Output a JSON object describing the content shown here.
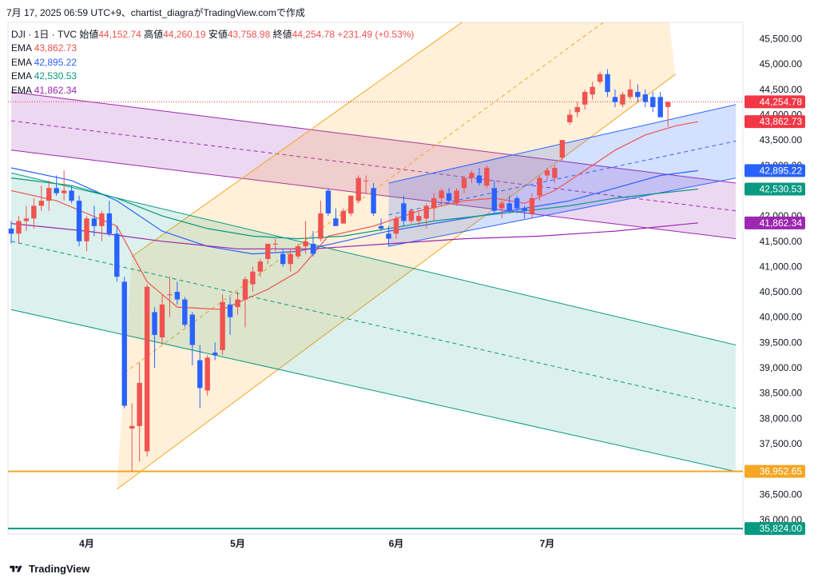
{
  "header": {
    "title": "7月 17, 2025 06:59 UTC+9、chartist_diagraがTradingView.comで作成"
  },
  "legend": {
    "symbol": "DJI · 1日 · TVC",
    "o_label": "始値",
    "o": "44,152.74",
    "h_label": "高値",
    "h": "44,260.19",
    "l_label": "安値",
    "l": "43,758.98",
    "c_label": "終値",
    "c": "44,254.78",
    "chg": "+231.49 (+0.53%)",
    "emas": [
      {
        "label": "EMA",
        "value": "43,862.73",
        "color": "#ef5350"
      },
      {
        "label": "EMA",
        "value": "42,895.22",
        "color": "#2962ff"
      },
      {
        "label": "EMA",
        "value": "42,530.53",
        "color": "#089981"
      },
      {
        "label": "EMA",
        "value": "41,862.34",
        "color": "#9c27b0"
      }
    ]
  },
  "footer": {
    "brand": "TradingView"
  },
  "colors": {
    "up": "#ef5350",
    "down": "#2962ff",
    "support": "#f5a623",
    "base": "#089981"
  },
  "chart_data": {
    "type": "candlestick",
    "ylim": [
      36000,
      45800
    ],
    "y_ticks": [
      "45,500.00",
      "45,000.00",
      "44,500.00",
      "44,000.00",
      "43,500.00",
      "43,000.00",
      "42,500.00",
      "42,000.00",
      "41,500.00",
      "41,000.00",
      "40,500.00",
      "40,000.00",
      "39,500.00",
      "39,000.00",
      "38,500.00",
      "38,000.00",
      "37,500.00",
      "37,000.00",
      "36,500.00",
      "36,000.00"
    ],
    "x_ticks": [
      {
        "label": "4月",
        "index": 10
      },
      {
        "label": "5月",
        "index": 30
      },
      {
        "label": "6月",
        "index": 51
      },
      {
        "label": "7月",
        "index": 71
      }
    ],
    "price_labels": [
      {
        "text": "44,254.78",
        "value": 44254.78,
        "color": "#f23645"
      },
      {
        "text": "43,862.73",
        "value": 43862.73,
        "color": "#f23645"
      },
      {
        "text": "42,895.22",
        "value": 42895.22,
        "color": "#2962ff"
      },
      {
        "text": "42,530.53",
        "value": 42530.53,
        "color": "#089981"
      },
      {
        "text": "41,862.34",
        "value": 41862.34,
        "color": "#9c27b0"
      },
      {
        "text": "36,952.65",
        "value": 36952.65,
        "color": "#f5a623"
      },
      {
        "text": "35,824.00",
        "value": 35824.0,
        "color": "#089981"
      }
    ],
    "candles": [
      [
        41750,
        41900,
        41450,
        41650
      ],
      [
        41650,
        42000,
        41450,
        41900
      ],
      [
        41900,
        42200,
        41700,
        41950
      ],
      [
        41950,
        42350,
        41750,
        42200
      ],
      [
        42200,
        42600,
        42100,
        42300
      ],
      [
        42300,
        42700,
        42100,
        42550
      ],
      [
        42550,
        42800,
        42400,
        42450
      ],
      [
        42450,
        42900,
        42300,
        42500
      ],
      [
        42500,
        42600,
        42250,
        42300
      ],
      [
        42300,
        42400,
        41400,
        41500
      ],
      [
        41500,
        42000,
        41300,
        41950
      ],
      [
        41950,
        42200,
        41600,
        41800
      ],
      [
        41800,
        42100,
        41500,
        42050
      ],
      [
        42050,
        42300,
        41600,
        41650
      ],
      [
        41650,
        41800,
        40700,
        40800
      ],
      [
        40700,
        40800,
        38200,
        38250
      ],
      [
        37800,
        38300,
        36950,
        37850
      ],
      [
        37850,
        39100,
        37150,
        38700
      ],
      [
        37350,
        40650,
        37250,
        40600
      ],
      [
        40100,
        40200,
        39000,
        39650
      ],
      [
        39600,
        40450,
        39450,
        40250
      ],
      [
        40450,
        40800,
        40000,
        40450
      ],
      [
        40500,
        40700,
        40250,
        40350
      ],
      [
        40350,
        40400,
        39800,
        39850
      ],
      [
        40050,
        40100,
        39050,
        39450
      ],
      [
        39150,
        39450,
        38200,
        38600
      ],
      [
        38550,
        39250,
        38450,
        39200
      ],
      [
        39300,
        39500,
        39150,
        39250
      ],
      [
        39350,
        40450,
        39250,
        40300
      ],
      [
        40250,
        40400,
        39650,
        40000
      ],
      [
        40200,
        40500,
        40050,
        40350
      ],
      [
        40350,
        40800,
        39800,
        40750
      ],
      [
        40650,
        41000,
        40500,
        40900
      ],
      [
        40900,
        41150,
        40800,
        41100
      ],
      [
        41150,
        41450,
        41050,
        41450
      ],
      [
        41450,
        41550,
        41300,
        41450
      ],
      [
        41250,
        41350,
        41000,
        41050
      ],
      [
        41050,
        41350,
        40900,
        41250
      ],
      [
        41200,
        41450,
        41150,
        41400
      ],
      [
        41400,
        41900,
        41250,
        41500
      ],
      [
        41450,
        41700,
        41200,
        41250
      ],
      [
        41550,
        42300,
        41500,
        42050
      ],
      [
        42500,
        42550,
        42000,
        42050
      ],
      [
        41950,
        42150,
        41800,
        41800
      ],
      [
        41850,
        42150,
        41850,
        42100
      ],
      [
        42050,
        42400,
        42000,
        42400
      ],
      [
        42300,
        42800,
        42250,
        42750
      ],
      [
        42700,
        42800,
        42450,
        42700
      ],
      [
        42550,
        42650,
        42000,
        42050
      ],
      [
        41800,
        41950,
        41700,
        41750
      ],
      [
        41650,
        41800,
        41400,
        41550
      ],
      [
        41650,
        42000,
        41550,
        41950
      ],
      [
        42250,
        42400,
        41800,
        41900
      ],
      [
        41900,
        42150,
        41850,
        42100
      ],
      [
        41900,
        42100,
        41800,
        42000
      ],
      [
        41950,
        42250,
        41750,
        42200
      ],
      [
        42150,
        42450,
        41900,
        42350
      ],
      [
        42350,
        42550,
        42200,
        42500
      ],
      [
        42450,
        42550,
        42250,
        42300
      ],
      [
        42250,
        42550,
        42200,
        42500
      ],
      [
        42550,
        42800,
        42450,
        42750
      ],
      [
        42750,
        42900,
        42650,
        42850
      ],
      [
        42800,
        42950,
        42600,
        42650
      ],
      [
        42600,
        43000,
        42550,
        42950
      ],
      [
        42550,
        42700,
        42050,
        42100
      ],
      [
        42150,
        42300,
        41950,
        42250
      ],
      [
        42250,
        42400,
        42050,
        42100
      ],
      [
        42350,
        42400,
        42050,
        42150
      ],
      [
        42150,
        42200,
        41950,
        42100
      ],
      [
        42050,
        42450,
        41950,
        42350
      ],
      [
        42400,
        42800,
        42300,
        42750
      ],
      [
        42800,
        42950,
        42700,
        42900
      ],
      [
        42750,
        43000,
        42650,
        42950
      ],
      [
        43150,
        43500,
        43100,
        43500
      ],
      [
        43850,
        44100,
        43800,
        44000
      ],
      [
        44050,
        44250,
        43950,
        44150
      ],
      [
        44200,
        44500,
        44100,
        44450
      ],
      [
        44400,
        44650,
        44300,
        44550
      ],
      [
        44650,
        44850,
        44600,
        44800
      ],
      [
        44800,
        44900,
        44350,
        44450
      ],
      [
        44350,
        44500,
        44150,
        44250
      ],
      [
        44200,
        44450,
        44150,
        44400
      ],
      [
        44350,
        44700,
        44300,
        44500
      ],
      [
        44450,
        44600,
        44250,
        44350
      ],
      [
        44400,
        44500,
        44150,
        44250
      ],
      [
        44350,
        44450,
        44050,
        44150
      ],
      [
        44350,
        44450,
        43950,
        43950
      ],
      [
        44152.74,
        44260.19,
        43758.98,
        44254.78
      ]
    ],
    "channels": [
      {
        "name": "",
        "color": "#9c27b0",
        "fill": "rgba(156,39,176,0.18)",
        "top": [
          [
            0,
            44450
          ],
          [
            96,
            42650
          ]
        ],
        "bottom": [
          [
            0,
            43300
          ],
          [
            96,
            41550
          ]
        ],
        "mid": [
          [
            0,
            43880
          ],
          [
            96,
            42100
          ]
        ]
      },
      {
        "name": "",
        "color": "#f5a623",
        "fill": "rgba(255,152,0,0.15)",
        "top": [
          [
            16,
            41200
          ],
          [
            85,
            48500
          ]
        ],
        "bottom": [
          [
            14,
            36600
          ],
          [
            88,
            44800
          ]
        ],
        "mid": [
          [
            15,
            38900
          ],
          [
            86,
            46650
          ]
        ]
      },
      {
        "name": "",
        "color": "#089981",
        "fill": "rgba(8,153,129,0.14)",
        "top": [
          [
            0,
            42850
          ],
          [
            96,
            39450
          ]
        ],
        "bottom": [
          [
            0,
            40150
          ],
          [
            96,
            36950
          ]
        ],
        "mid": [
          [
            0,
            41500
          ],
          [
            96,
            38200
          ]
        ]
      },
      {
        "name": "",
        "color": "#2962ff",
        "fill": "rgba(41,98,255,0.20)",
        "top": [
          [
            50,
            42650
          ],
          [
            96,
            44200
          ]
        ],
        "bottom": [
          [
            50,
            41400
          ],
          [
            96,
            42750
          ]
        ],
        "mid": [
          [
            50,
            42020
          ],
          [
            96,
            43480
          ]
        ]
      }
    ],
    "ema_lines": [
      {
        "color": "#ef5350",
        "points": [
          [
            0,
            42500
          ],
          [
            6,
            42300
          ],
          [
            14,
            41800
          ],
          [
            18,
            40700
          ],
          [
            22,
            40200
          ],
          [
            28,
            40150
          ],
          [
            34,
            40550
          ],
          [
            38,
            40900
          ],
          [
            42,
            41600
          ],
          [
            48,
            41800
          ],
          [
            54,
            42100
          ],
          [
            60,
            42300
          ],
          [
            64,
            42350
          ],
          [
            68,
            42250
          ],
          [
            72,
            42500
          ],
          [
            76,
            42900
          ],
          [
            80,
            43300
          ],
          [
            84,
            43600
          ],
          [
            88,
            43780
          ],
          [
            91,
            43862
          ]
        ]
      },
      {
        "color": "#2962ff",
        "points": [
          [
            0,
            42950
          ],
          [
            8,
            42700
          ],
          [
            14,
            42300
          ],
          [
            20,
            41700
          ],
          [
            26,
            41400
          ],
          [
            32,
            41250
          ],
          [
            38,
            41300
          ],
          [
            44,
            41500
          ],
          [
            50,
            41700
          ],
          [
            56,
            41850
          ],
          [
            62,
            42000
          ],
          [
            68,
            42150
          ],
          [
            74,
            42300
          ],
          [
            80,
            42550
          ],
          [
            86,
            42800
          ],
          [
            91,
            42895
          ]
        ]
      },
      {
        "color": "#089981",
        "points": [
          [
            0,
            42750
          ],
          [
            8,
            42600
          ],
          [
            14,
            42350
          ],
          [
            20,
            42000
          ],
          [
            26,
            41750
          ],
          [
            32,
            41600
          ],
          [
            38,
            41550
          ],
          [
            44,
            41600
          ],
          [
            50,
            41750
          ],
          [
            56,
            41900
          ],
          [
            62,
            42000
          ],
          [
            68,
            42100
          ],
          [
            74,
            42200
          ],
          [
            80,
            42350
          ],
          [
            86,
            42450
          ],
          [
            91,
            42530
          ]
        ]
      },
      {
        "color": "#9c27b0",
        "points": [
          [
            0,
            41850
          ],
          [
            10,
            41700
          ],
          [
            20,
            41500
          ],
          [
            30,
            41350
          ],
          [
            40,
            41350
          ],
          [
            50,
            41450
          ],
          [
            60,
            41550
          ],
          [
            70,
            41600
          ],
          [
            80,
            41700
          ],
          [
            91,
            41862
          ]
        ]
      }
    ],
    "horizontal_lines": [
      {
        "value": 36952.65,
        "color": "#f5a623",
        "width": 2
      },
      {
        "value": 35824.0,
        "color": "#089981",
        "width": 2
      },
      {
        "value": 44254.78,
        "color": "#f23645",
        "width": 1,
        "dotted": true
      }
    ]
  }
}
